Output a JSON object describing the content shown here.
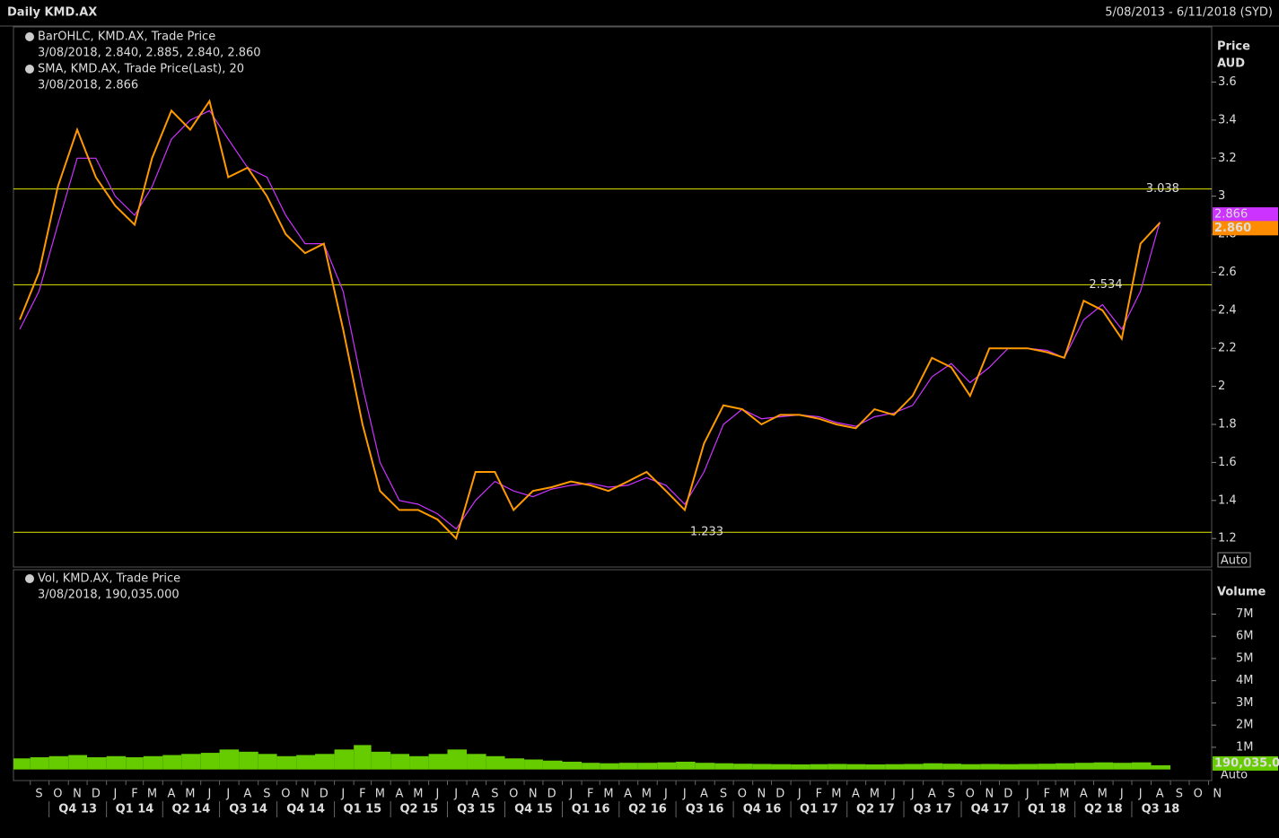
{
  "header": {
    "title": "Daily KMD.AX",
    "range": "5/08/2013 - 6/11/2018 (SYD)"
  },
  "chart_data": [
    {
      "type": "line",
      "axis_title": "Price",
      "axis_unit": "AUD",
      "scale_button": "Auto",
      "legend": [
        {
          "text": "BarOHLC, KMD.AX, Trade Price",
          "detail": "3/08/2018, 2.840, 2.885, 2.840, 2.860"
        },
        {
          "text": "SMA, KMD.AX, Trade Price(Last),  20",
          "detail": "3/08/2018, 2.866"
        }
      ],
      "xlim": [
        "2013-08-05",
        "2018-11-06"
      ],
      "x": [
        "2013-08",
        "2013-09",
        "2013-10",
        "2013-11",
        "2013-12",
        "2014-01",
        "2014-02",
        "2014-03",
        "2014-04",
        "2014-05",
        "2014-06",
        "2014-07",
        "2014-08",
        "2014-09",
        "2014-10",
        "2014-11",
        "2014-12",
        "2015-01",
        "2015-02",
        "2015-03",
        "2015-04",
        "2015-05",
        "2015-06",
        "2015-07",
        "2015-08",
        "2015-09",
        "2015-10",
        "2015-11",
        "2015-12",
        "2016-01",
        "2016-02",
        "2016-03",
        "2016-04",
        "2016-05",
        "2016-06",
        "2016-07",
        "2016-08",
        "2016-09",
        "2016-10",
        "2016-11",
        "2016-12",
        "2017-01",
        "2017-02",
        "2017-03",
        "2017-04",
        "2017-05",
        "2017-06",
        "2017-07",
        "2017-08",
        "2017-09",
        "2017-10",
        "2017-11",
        "2017-12",
        "2018-01",
        "2018-02",
        "2018-03",
        "2018-04",
        "2018-05",
        "2018-06",
        "2018-07",
        "2018-08"
      ],
      "series": [
        {
          "name": "BarOHLC",
          "color": "#ff9900",
          "values": [
            2.35,
            2.6,
            3.05,
            3.35,
            3.1,
            2.95,
            2.85,
            3.2,
            3.45,
            3.35,
            3.5,
            3.1,
            3.15,
            3.0,
            2.8,
            2.7,
            2.75,
            2.3,
            1.8,
            1.45,
            1.35,
            1.35,
            1.3,
            1.2,
            1.55,
            1.55,
            1.35,
            1.45,
            1.47,
            1.5,
            1.48,
            1.45,
            1.5,
            1.55,
            1.45,
            1.35,
            1.7,
            1.9,
            1.88,
            1.8,
            1.85,
            1.85,
            1.83,
            1.8,
            1.78,
            1.88,
            1.85,
            1.95,
            2.15,
            2.1,
            1.95,
            2.2,
            2.2,
            2.2,
            2.18,
            2.15,
            2.45,
            2.4,
            2.25,
            2.75,
            2.86
          ]
        },
        {
          "name": "SMA",
          "color": "#cc33ff",
          "values": [
            2.3,
            2.5,
            2.85,
            3.2,
            3.2,
            3.0,
            2.9,
            3.05,
            3.3,
            3.4,
            3.45,
            3.3,
            3.15,
            3.1,
            2.9,
            2.75,
            2.75,
            2.5,
            2.0,
            1.6,
            1.4,
            1.38,
            1.33,
            1.25,
            1.4,
            1.5,
            1.45,
            1.42,
            1.46,
            1.48,
            1.49,
            1.47,
            1.48,
            1.52,
            1.48,
            1.38,
            1.55,
            1.8,
            1.88,
            1.83,
            1.84,
            1.85,
            1.84,
            1.81,
            1.79,
            1.84,
            1.86,
            1.9,
            2.05,
            2.12,
            2.02,
            2.1,
            2.2,
            2.2,
            2.19,
            2.15,
            2.35,
            2.43,
            2.3,
            2.5,
            2.866
          ]
        }
      ],
      "reference_lines": [
        {
          "value": 3.038,
          "label": "3.038",
          "date": "2018-07"
        },
        {
          "value": 2.534,
          "label": "2.534",
          "date": "2018-04"
        },
        {
          "value": 1.233,
          "label": "1.233",
          "date": "2016-07"
        }
      ],
      "last_labels": [
        {
          "value": 2.866,
          "label": "2.866",
          "color": "#cc33ff"
        },
        {
          "value": 2.86,
          "label": "2.860",
          "color": "#ff8c00"
        }
      ],
      "ylim": [
        1.05,
        3.89
      ],
      "yticks": [
        1.2,
        1.4,
        1.6,
        1.8,
        2,
        2.2,
        2.4,
        2.6,
        2.8,
        3,
        3.2,
        3.4,
        3.6
      ]
    },
    {
      "type": "bar",
      "axis_title": "Volume",
      "scale_button": "Auto",
      "legend": [
        {
          "text": "Vol, KMD.AX, Trade Price",
          "detail": "3/08/2018, 190,035.000"
        }
      ],
      "series": [
        {
          "name": "Vol",
          "color": "#66cc00",
          "values": [
            500000,
            550000,
            600000,
            650000,
            550000,
            600000,
            550000,
            600000,
            650000,
            700000,
            750000,
            900000,
            800000,
            700000,
            600000,
            650000,
            700000,
            900000,
            1100000,
            800000,
            700000,
            600000,
            700000,
            900000,
            700000,
            600000,
            500000,
            450000,
            400000,
            350000,
            300000,
            280000,
            300000,
            300000,
            320000,
            350000,
            300000,
            280000,
            260000,
            250000,
            240000,
            230000,
            240000,
            250000,
            240000,
            230000,
            240000,
            250000,
            280000,
            260000,
            240000,
            250000,
            240000,
            250000,
            260000,
            280000,
            300000,
            320000,
            300000,
            320000,
            190035
          ]
        }
      ],
      "last_label": {
        "value": 190035,
        "label": "190,035.0"
      },
      "ylim": [
        -500000,
        9000000
      ],
      "yticks": [
        {
          "value": 1000000,
          "label": "1M"
        },
        {
          "value": 2000000,
          "label": "2M"
        },
        {
          "value": 3000000,
          "label": "3M"
        },
        {
          "value": 4000000,
          "label": "4M"
        },
        {
          "value": 5000000,
          "label": "5M"
        },
        {
          "value": 6000000,
          "label": "6M"
        },
        {
          "value": 7000000,
          "label": "7M"
        }
      ]
    }
  ],
  "x_axis": {
    "months": [
      "S",
      "O",
      "N",
      "D",
      "J",
      "F",
      "M",
      "A",
      "M",
      "J",
      "J",
      "A",
      "S",
      "O",
      "N",
      "D",
      "J",
      "F",
      "M",
      "A",
      "M",
      "J",
      "J",
      "A",
      "S",
      "O",
      "N",
      "D",
      "J",
      "F",
      "M",
      "A",
      "M",
      "J",
      "J",
      "A",
      "S",
      "O",
      "N",
      "D",
      "J",
      "F",
      "M",
      "A",
      "M",
      "J",
      "J",
      "A",
      "S",
      "O",
      "N",
      "D",
      "J",
      "F",
      "M",
      "A",
      "M",
      "J",
      "J",
      "A",
      "S",
      "O",
      "N"
    ],
    "quarters": [
      "Q4 13",
      "Q1 14",
      "Q2 14",
      "Q3 14",
      "Q4 14",
      "Q1 15",
      "Q2 15",
      "Q3 15",
      "Q4 15",
      "Q1 16",
      "Q2 16",
      "Q3 16",
      "Q4 16",
      "Q1 17",
      "Q2 17",
      "Q3 17",
      "Q4 17",
      "Q1 18",
      "Q2 18",
      "Q3 18"
    ]
  }
}
